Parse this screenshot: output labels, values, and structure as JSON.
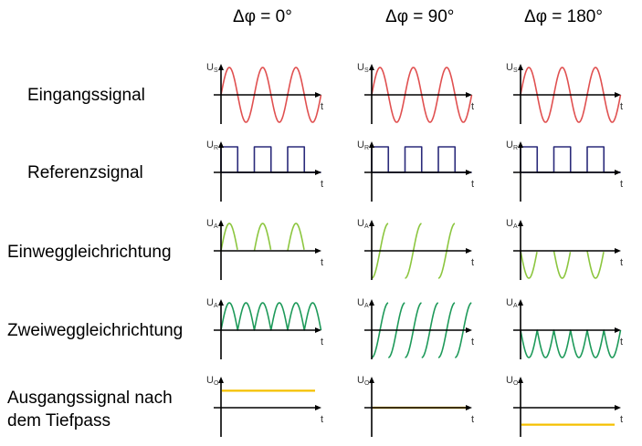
{
  "columns": [
    {
      "id": "0",
      "header": "Δφ = 0°"
    },
    {
      "id": "90",
      "header": "Δφ = 90°"
    },
    {
      "id": "180",
      "header": "Δφ = 180°"
    }
  ],
  "rows": [
    {
      "id": "input",
      "label_lines": [
        "Eingangssignal"
      ],
      "axis_label": "U",
      "axis_sub": "S",
      "curve": "sine",
      "color": "#e05050"
    },
    {
      "id": "reference",
      "label_lines": [
        "Referenzsignal"
      ],
      "axis_label": "U",
      "axis_sub": "R",
      "curve": "square",
      "color": "#2a2a7a"
    },
    {
      "id": "halfwave",
      "label_lines": [
        "Einweggleichrichtung"
      ],
      "axis_label": "U",
      "axis_sub": "A",
      "curve": "halfwave",
      "color": "#8cc63f"
    },
    {
      "id": "fullwave",
      "label_lines": [
        "Zweiweggleichrichtung"
      ],
      "axis_label": "U",
      "axis_sub": "A",
      "curve": "fullwave",
      "color": "#1e9a5a"
    },
    {
      "id": "output",
      "label_lines": [
        "Ausgangssignal nach",
        "dem Tiefpass"
      ],
      "axis_label": "U",
      "axis_sub": "O",
      "curve": "dc",
      "color": "#f5c000"
    }
  ],
  "time_label": "t",
  "colors": {
    "axis": "#000000"
  }
}
